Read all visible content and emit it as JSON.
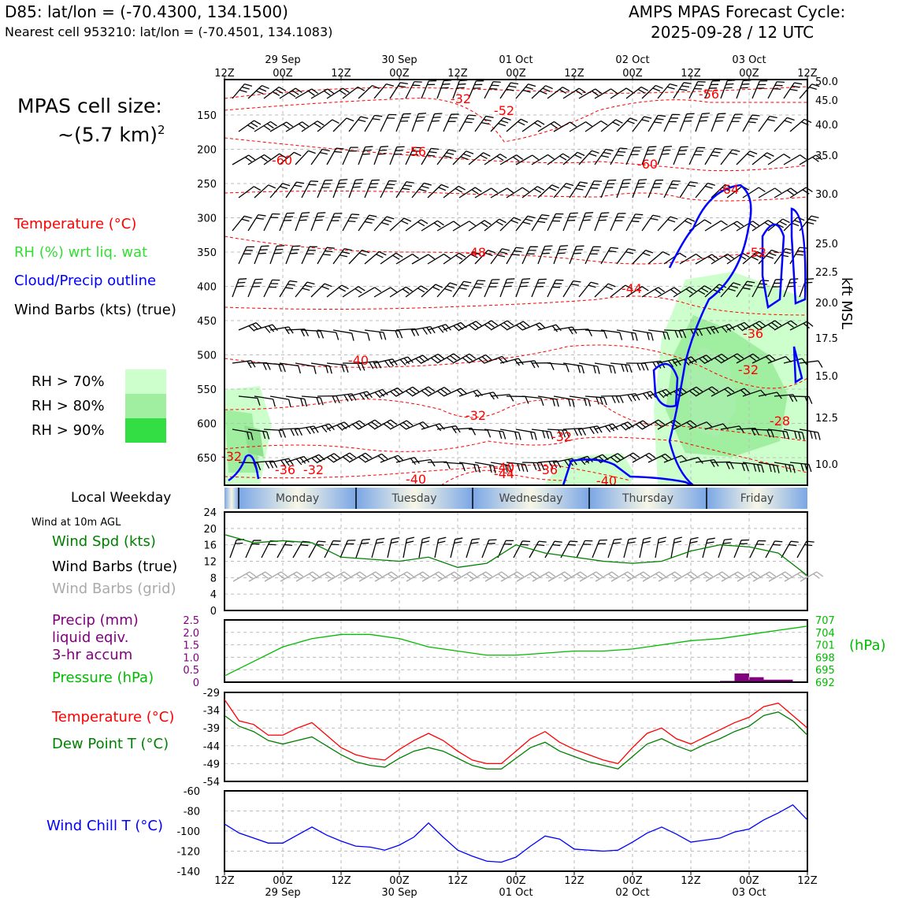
{
  "header": {
    "station": "D85: lat/lon = (-70.4300, 134.1500)",
    "nearest": "Nearest cell 953210: lat/lon = (-70.4501, 134.1083)",
    "cycle_line1": "AMPS MPAS Forecast Cycle:",
    "cycle_line2": "2025-09-28 / 12 UTC"
  },
  "legend": {
    "cell_size_label": "MPAS cell size:",
    "cell_size_value": "~(5.7 km)",
    "cell_size_exp": "2",
    "temperature": "Temperature (°C)",
    "rh": "RH (%) wrt liq. wat",
    "cloud": "Cloud/Precip outline",
    "barbs": "Wind Barbs (kts) (true)",
    "rh70": "RH > 70%",
    "rh80": "RH > 80%",
    "rh90": "RH > 90%"
  },
  "colors": {
    "temperature": "#ff0000",
    "rh_label": "#33dd33",
    "cloud": "#0000ff",
    "rh70": "#ccffcc",
    "rh80": "#a0eea0",
    "rh90": "#33dd44",
    "wind_speed": "#008000",
    "pressure": "#00bb00",
    "precip": "#800080",
    "dewpoint": "#008000",
    "windchill": "#0000ff",
    "grid_barbs": "#aaaaaa"
  },
  "time_axis": {
    "ticks": [
      "12Z",
      "00Z",
      "12Z",
      "00Z",
      "12Z",
      "00Z",
      "12Z",
      "00Z",
      "12Z",
      "00Z",
      "12Z"
    ],
    "dates": [
      "29 Sep",
      "30 Sep",
      "01 Oct",
      "02 Oct",
      "03 Oct"
    ]
  },
  "weekdays": {
    "title": "Local Weekday",
    "days": [
      "Monday",
      "Tuesday",
      "Wednesday",
      "Thursday",
      "Friday"
    ]
  },
  "sections": {
    "wind_title": "Wind at 10m AGL",
    "wind_speed": "Wind Spd (kts)",
    "wind_barbs_true": "Wind Barbs (true)",
    "wind_barbs_grid": "Wind Barbs (grid)",
    "precip_l1": "Precip (mm)",
    "precip_l2": "liquid eqiv.",
    "precip_l3": "3-hr accum",
    "pressure": "Pressure (hPa)",
    "hpa": "(hPa)",
    "temperature": "Temperature (°C)",
    "dewpoint": "Dew Point T (°C)",
    "windchill": "Wind Chill T (°C)",
    "kft": "kft MSL"
  },
  "chart_data": [
    {
      "type": "contour",
      "name": "cross-section",
      "y_left_ticks": [
        "150",
        "200",
        "250",
        "300",
        "350",
        "400",
        "450",
        "500",
        "550",
        "600",
        "650"
      ],
      "y_right_ticks": [
        "50.0",
        "45.0",
        "40.0",
        "35.0",
        "30.0",
        "25.0",
        "22.5",
        "20.0",
        "17.5",
        "15.0",
        "12.5",
        "10.0"
      ],
      "temp_labels": [
        "-32",
        "-52",
        "-56",
        "-56",
        "-60",
        "-60",
        "-64",
        "-48",
        "-52",
        "-44",
        "-36",
        "-40",
        "-32",
        "-32",
        "-32",
        "-32",
        "-28",
        "-36",
        "-32",
        "-40",
        "-40",
        "-44",
        "-36",
        "-40"
      ]
    },
    {
      "type": "line",
      "name": "wind",
      "x": [
        0,
        6,
        12,
        18,
        24,
        30,
        36,
        42,
        48,
        54,
        60,
        66,
        72,
        78,
        84,
        90,
        96,
        102,
        108,
        114,
        120
      ],
      "series": [
        {
          "values": [
            18.5,
            16.5,
            17,
            16.5,
            13,
            12.5,
            12,
            13,
            10.5,
            11.5,
            16,
            14,
            13,
            12,
            11.5,
            12,
            14.5,
            16,
            15.5,
            14,
            8.5
          ]
        }
      ],
      "yticks": [
        "0",
        "4",
        "8",
        "12",
        "16",
        "20",
        "24"
      ],
      "ylim": [
        0,
        24
      ]
    },
    {
      "type": "bar+line",
      "name": "precip-pressure",
      "precip_yticks": [
        "0",
        "0.5",
        "1.0",
        "1.5",
        "2.0",
        "2.5"
      ],
      "pressure_yticks": [
        "692",
        "695",
        "698",
        "701",
        "704",
        "707"
      ],
      "pressure_x": [
        0,
        6,
        12,
        18,
        24,
        30,
        36,
        42,
        48,
        54,
        60,
        66,
        72,
        78,
        84,
        90,
        96,
        102,
        108,
        114,
        120
      ],
      "pressure_values": [
        693.5,
        697,
        700.5,
        702.5,
        703.5,
        703.5,
        702.5,
        700.5,
        699.5,
        698.5,
        698.5,
        699,
        699.5,
        699.5,
        700,
        701,
        702,
        702.5,
        703.5,
        704.5,
        705.5
      ],
      "precip_bars": [
        {
          "t0": 102,
          "t1": 105,
          "mm": 0.05
        },
        {
          "t0": 105,
          "t1": 108,
          "mm": 0.35
        },
        {
          "t0": 108,
          "t1": 111,
          "mm": 0.2
        },
        {
          "t0": 111,
          "t1": 117,
          "mm": 0.1
        }
      ]
    },
    {
      "type": "line",
      "name": "temperature",
      "yticks": [
        "-29",
        "-34",
        "-39",
        "-44",
        "-49",
        "-54"
      ],
      "ylim": [
        -54,
        -29
      ],
      "x": [
        0,
        3,
        6,
        9,
        12,
        15,
        18,
        21,
        24,
        27,
        30,
        33,
        36,
        39,
        42,
        45,
        48,
        51,
        54,
        57,
        60,
        63,
        66,
        69,
        72,
        75,
        78,
        81,
        84,
        87,
        90,
        93,
        96,
        99,
        102,
        105,
        108,
        111,
        114,
        117,
        120
      ],
      "series": [
        {
          "values": [
            -31,
            -37,
            -38,
            -41,
            -41,
            -39,
            -37.5,
            -41,
            -44.5,
            -46.5,
            -47.5,
            -48,
            -45,
            -42.5,
            -40.5,
            -42.5,
            -45.5,
            -48,
            -49,
            -49,
            -45.5,
            -42,
            -40,
            -43,
            -45,
            -46.5,
            -48,
            -49,
            -44.5,
            -40.5,
            -39,
            -42,
            -43.5,
            -41.5,
            -39.5,
            -37.5,
            -36,
            -33,
            -32,
            -35.5,
            -39
          ]
        },
        {
          "values": [
            -35.5,
            -38.5,
            -40,
            -42.5,
            -43.5,
            -42.5,
            -41.5,
            -44,
            -46.5,
            -48.5,
            -49.5,
            -50,
            -47.5,
            -45.5,
            -44.5,
            -45.5,
            -47.5,
            -49.5,
            -50.5,
            -50.5,
            -47.5,
            -44.5,
            -43,
            -45.5,
            -47,
            -48.5,
            -49.5,
            -50.5,
            -47,
            -43.5,
            -42,
            -44,
            -45.5,
            -43.5,
            -42,
            -40,
            -38.5,
            -35.5,
            -34.5,
            -37,
            -41
          ]
        }
      ]
    },
    {
      "type": "line",
      "name": "windchill",
      "yticks": [
        "-60",
        "-80",
        "-100",
        "-120",
        "-140"
      ],
      "ylim": [
        -140,
        -60
      ],
      "x": [
        0,
        3,
        6,
        9,
        12,
        15,
        18,
        21,
        24,
        27,
        30,
        33,
        36,
        39,
        42,
        45,
        48,
        51,
        54,
        57,
        60,
        63,
        66,
        69,
        72,
        75,
        78,
        81,
        84,
        87,
        90,
        93,
        96,
        99,
        102,
        105,
        108,
        111,
        114,
        117,
        120
      ],
      "series": [
        {
          "values": [
            -93,
            -102,
            -107,
            -112,
            -112,
            -104,
            -96,
            -104,
            -110,
            -115,
            -116,
            -119,
            -114,
            -106,
            -92,
            -106,
            -119,
            -125,
            -130,
            -131,
            -126,
            -115,
            -105,
            -108,
            -118,
            -119,
            -120,
            -119,
            -111,
            -102,
            -96,
            -103,
            -111,
            -109,
            -107,
            -101,
            -98,
            -89,
            -82,
            -74,
            -89
          ]
        }
      ]
    }
  ]
}
